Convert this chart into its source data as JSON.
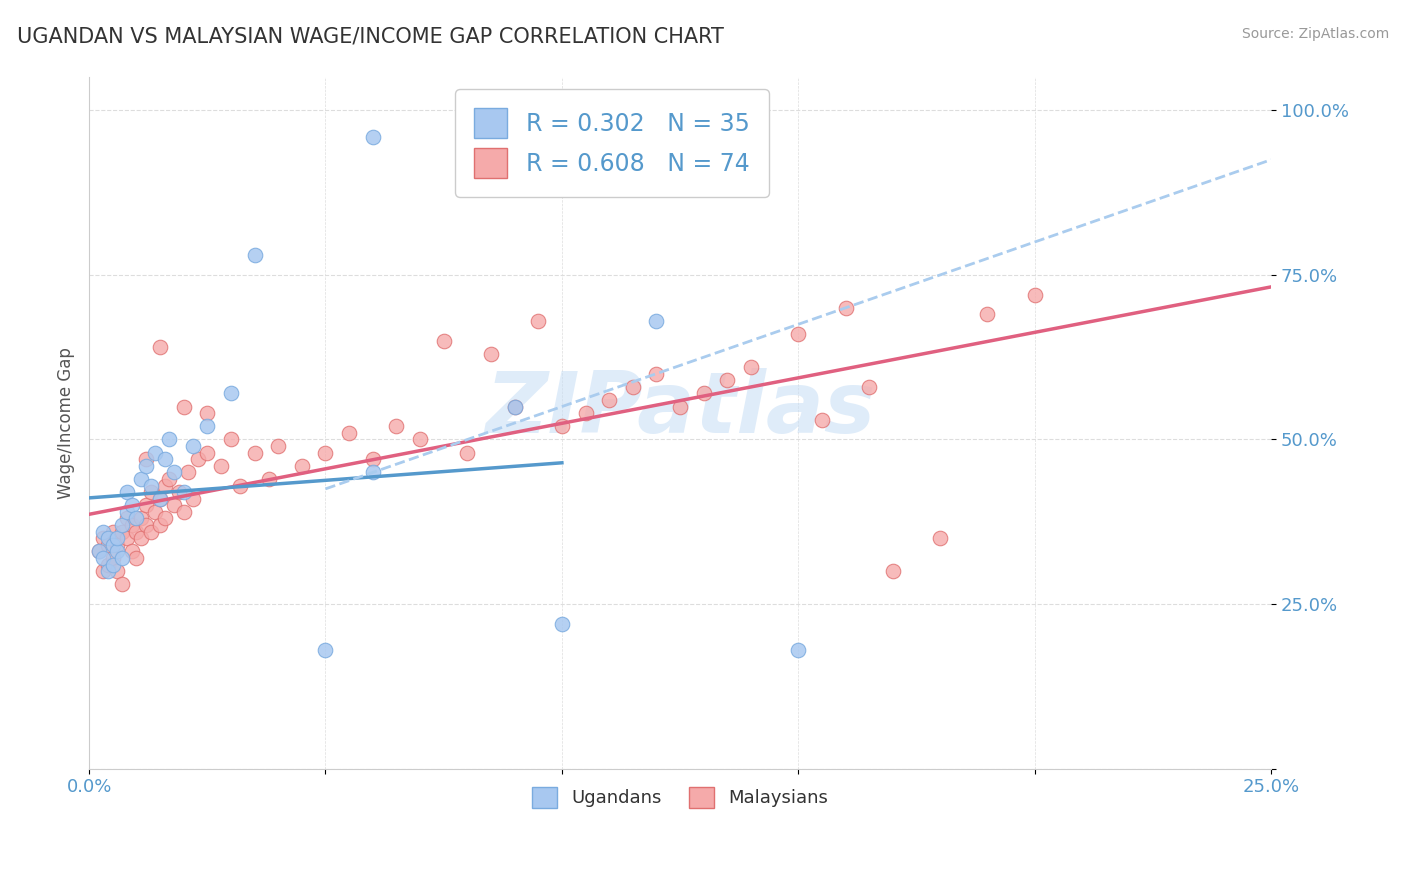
{
  "title": "UGANDAN VS MALAYSIAN WAGE/INCOME GAP CORRELATION CHART",
  "source_text": "Source: ZipAtlas.com",
  "ylabel": "Wage/Income Gap",
  "xlim": [
    0.0,
    0.25
  ],
  "ylim": [
    0.0,
    1.05
  ],
  "ugandan_color": "#a8c8f0",
  "ugandan_edge_color": "#7aabdf",
  "malaysian_color": "#f5aaaa",
  "malaysian_edge_color": "#e07070",
  "ugandan_trend_color": "#5599cc",
  "ugandan_dashed_color": "#aaccee",
  "malaysian_trend_color": "#e06080",
  "R_ugandan": 0.302,
  "N_ugandan": 35,
  "R_malaysian": 0.608,
  "N_malaysian": 74,
  "legend_label_ugandan": "Ugandans",
  "legend_label_malaysian": "Malaysians",
  "background_color": "#ffffff",
  "title_color": "#333333",
  "title_fontsize": 15,
  "tick_color": "#5599cc",
  "legend_text_color": "#5599cc",
  "grid_color": "#dddddd",
  "watermark_color": "#c5ddf5",
  "ugandan_x": [
    0.002,
    0.003,
    0.003,
    0.004,
    0.004,
    0.005,
    0.005,
    0.006,
    0.006,
    0.007,
    0.007,
    0.008,
    0.008,
    0.009,
    0.01,
    0.011,
    0.012,
    0.013,
    0.014,
    0.015,
    0.016,
    0.017,
    0.018,
    0.02,
    0.022,
    0.025,
    0.03,
    0.035,
    0.05,
    0.06,
    0.09,
    0.1,
    0.12,
    0.15,
    0.06
  ],
  "ugandan_y": [
    0.33,
    0.36,
    0.32,
    0.35,
    0.3,
    0.34,
    0.31,
    0.33,
    0.35,
    0.37,
    0.32,
    0.39,
    0.42,
    0.4,
    0.38,
    0.44,
    0.46,
    0.43,
    0.48,
    0.41,
    0.47,
    0.5,
    0.45,
    0.42,
    0.49,
    0.52,
    0.57,
    0.78,
    0.18,
    0.45,
    0.55,
    0.22,
    0.68,
    0.18,
    0.96
  ],
  "malaysian_x": [
    0.002,
    0.003,
    0.003,
    0.004,
    0.004,
    0.005,
    0.005,
    0.006,
    0.006,
    0.007,
    0.007,
    0.008,
    0.008,
    0.009,
    0.009,
    0.01,
    0.01,
    0.011,
    0.011,
    0.012,
    0.012,
    0.013,
    0.013,
    0.014,
    0.015,
    0.015,
    0.016,
    0.016,
    0.017,
    0.018,
    0.019,
    0.02,
    0.021,
    0.022,
    0.023,
    0.025,
    0.028,
    0.03,
    0.032,
    0.035,
    0.038,
    0.04,
    0.045,
    0.05,
    0.055,
    0.06,
    0.065,
    0.07,
    0.075,
    0.08,
    0.085,
    0.09,
    0.095,
    0.1,
    0.105,
    0.11,
    0.115,
    0.12,
    0.125,
    0.13,
    0.135,
    0.14,
    0.15,
    0.155,
    0.16,
    0.165,
    0.17,
    0.18,
    0.19,
    0.2,
    0.012,
    0.015,
    0.02,
    0.025
  ],
  "malaysian_y": [
    0.33,
    0.35,
    0.3,
    0.34,
    0.31,
    0.36,
    0.32,
    0.3,
    0.34,
    0.36,
    0.28,
    0.38,
    0.35,
    0.37,
    0.33,
    0.36,
    0.32,
    0.38,
    0.35,
    0.37,
    0.4,
    0.36,
    0.42,
    0.39,
    0.37,
    0.41,
    0.43,
    0.38,
    0.44,
    0.4,
    0.42,
    0.39,
    0.45,
    0.41,
    0.47,
    0.48,
    0.46,
    0.5,
    0.43,
    0.48,
    0.44,
    0.49,
    0.46,
    0.48,
    0.51,
    0.47,
    0.52,
    0.5,
    0.65,
    0.48,
    0.63,
    0.55,
    0.68,
    0.52,
    0.54,
    0.56,
    0.58,
    0.6,
    0.55,
    0.57,
    0.59,
    0.61,
    0.66,
    0.53,
    0.7,
    0.58,
    0.3,
    0.35,
    0.69,
    0.72,
    0.47,
    0.64,
    0.55,
    0.54
  ]
}
